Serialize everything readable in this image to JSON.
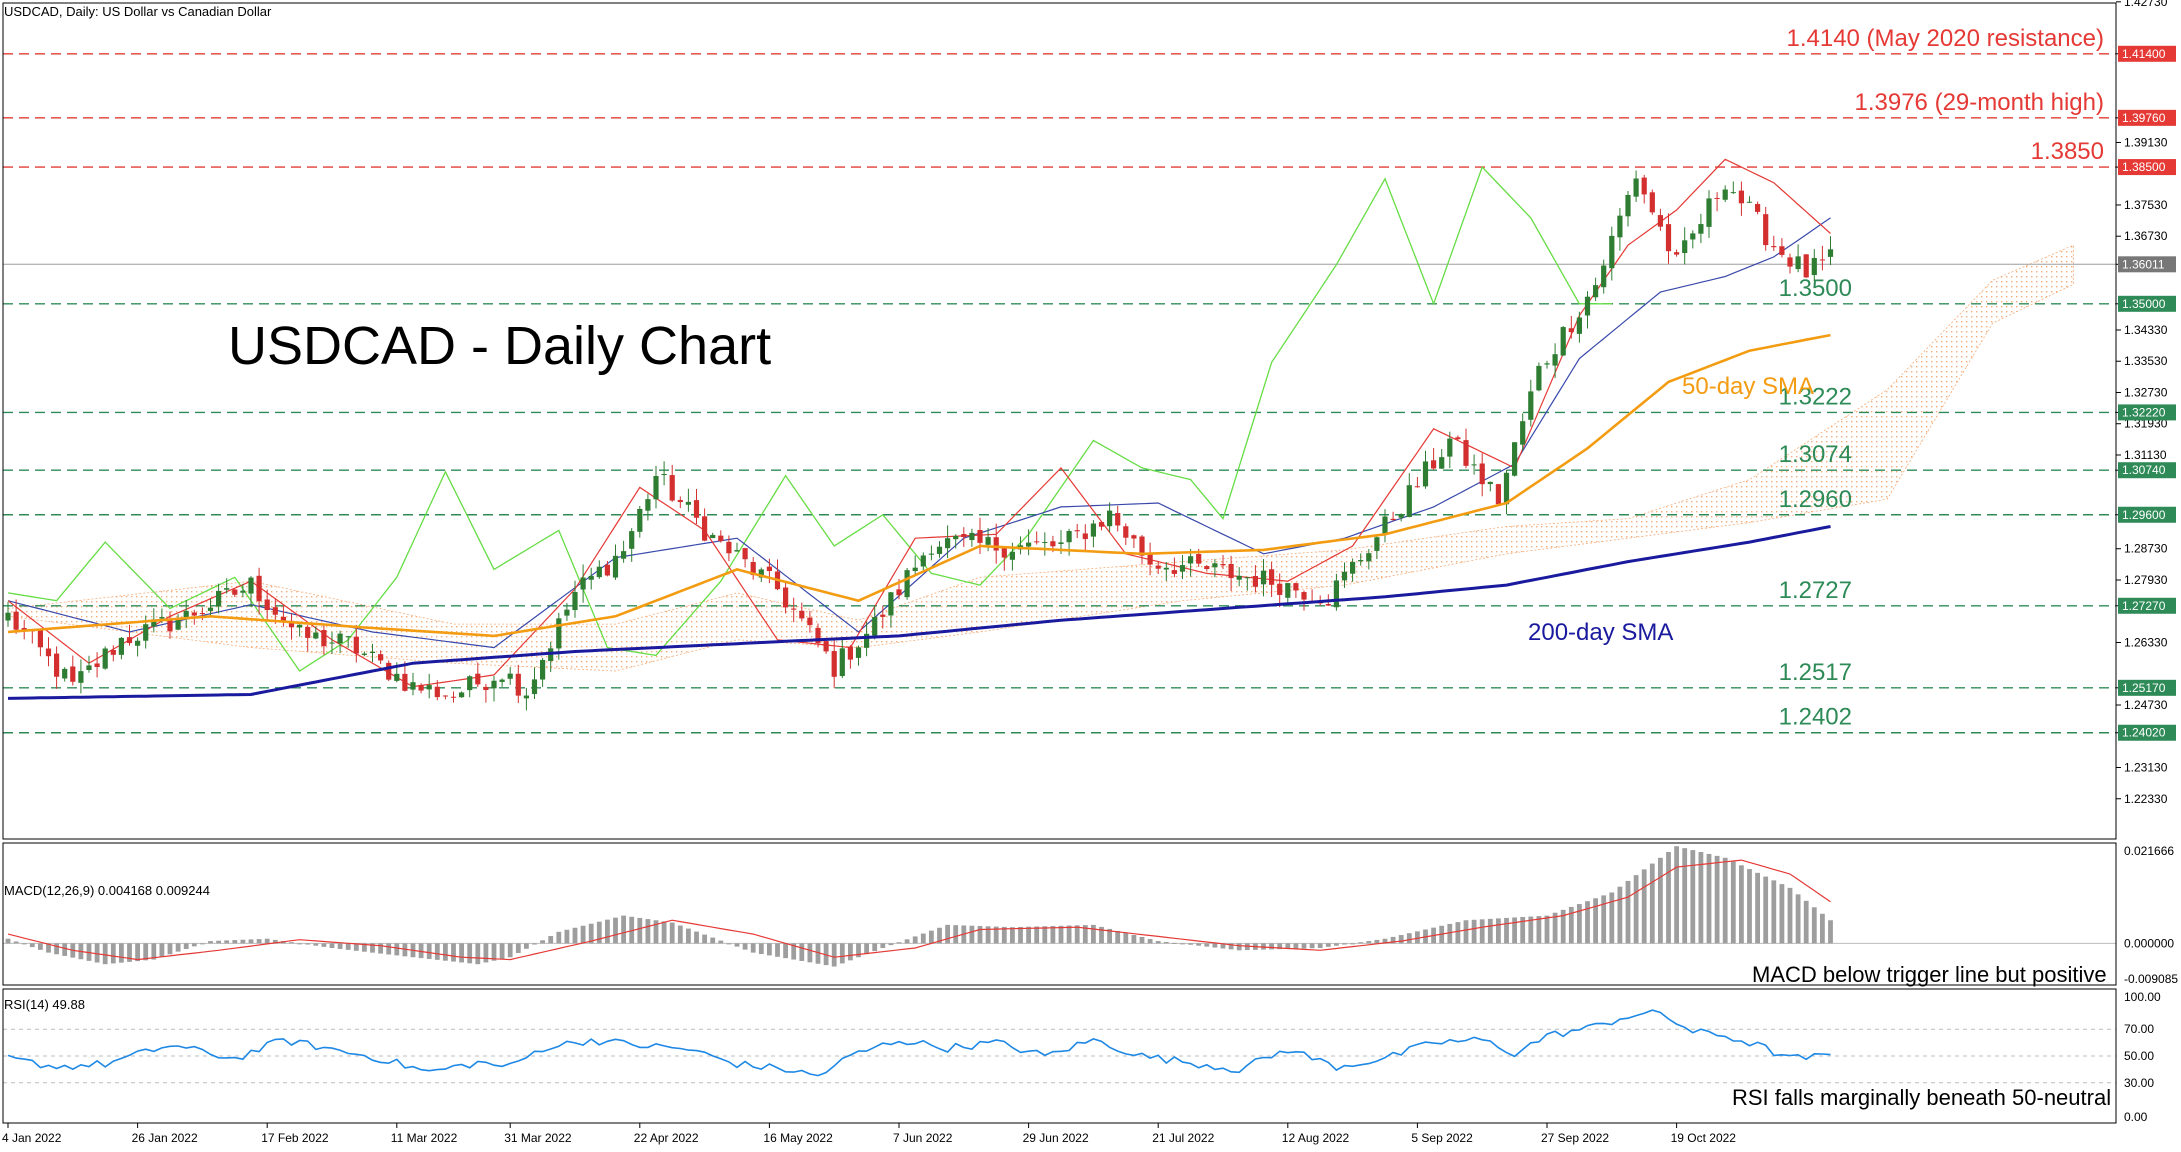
{
  "header": {
    "symbol_info": "USDCAD, Daily:  US Dollar vs Canadian Dollar"
  },
  "annotations": {
    "main_title": "USDCAD - Daily Chart",
    "sma50_label": "50-day SMA",
    "sma200_label": "200-day SMA",
    "macd_note": "MACD below trigger line but positive",
    "rsi_note": "RSI falls marginally beneath 50-neutral"
  },
  "colors": {
    "bull": "#2e7d32",
    "bear": "#d32f2f",
    "sma50": "#f39c12",
    "sma200": "#1a1a9e",
    "tenkan": "#e53935",
    "kijun": "#3949ab",
    "chikou": "#66dd44",
    "cloud": "#f3a46b",
    "resistance": "#e53935",
    "support": "#2e8b57",
    "macd_hist": "#9e9e9e",
    "macd_signal": "#e53935",
    "rsi": "#1e88e5"
  },
  "chart_data": [
    {
      "id": "price",
      "type": "candlestick",
      "ylim": [
        1.213,
        1.427
      ],
      "y_ticks": [
        "1.42730",
        "1.41400",
        "1.39760",
        "1.39130",
        "1.38500",
        "1.37530",
        "1.36730",
        "1.36011",
        "1.35000",
        "1.34330",
        "1.33530",
        "1.32730",
        "1.32220",
        "1.31930",
        "1.31130",
        "1.30740",
        "1.29600",
        "1.28730",
        "1.27930",
        "1.27270",
        "1.26330",
        "1.25170",
        "1.24730",
        "1.24020",
        "1.23130",
        "1.22330"
      ],
      "x_labels": [
        "4 Jan 2022",
        "26 Jan 2022",
        "17 Feb 2022",
        "11 Mar 2022",
        "31 Mar 2022",
        "22 Apr 2022",
        "16 May 2022",
        "7 Jun 2022",
        "29 Jun 2022",
        "21 Jul 2022",
        "12 Aug 2022",
        "5 Sep 2022",
        "27 Sep 2022",
        "19 Oct 2022"
      ],
      "current_price": 1.36011,
      "levels": [
        {
          "value": 1.414,
          "tag": "1.41400",
          "label": "1.4140 (May 2020 resistance)",
          "kind": "resistance"
        },
        {
          "value": 1.3976,
          "tag": "1.39760",
          "label": "1.3976 (29-month high)",
          "kind": "resistance"
        },
        {
          "value": 1.385,
          "tag": "1.38500",
          "label": "1.3850",
          "kind": "resistance"
        },
        {
          "value": 1.35,
          "tag": "1.35000",
          "label": "1.3500",
          "kind": "support"
        },
        {
          "value": 1.3222,
          "tag": "1.32220",
          "label": "1.3222",
          "kind": "support"
        },
        {
          "value": 1.3074,
          "tag": "1.30740",
          "label": "1.3074",
          "kind": "support"
        },
        {
          "value": 1.296,
          "tag": "1.29600",
          "label": "1.2960",
          "kind": "support"
        },
        {
          "value": 1.2727,
          "tag": "1.27270",
          "label": "1.2727",
          "kind": "support"
        },
        {
          "value": 1.2517,
          "tag": "1.25170",
          "label": "1.2517",
          "kind": "support"
        },
        {
          "value": 1.2402,
          "tag": "1.24020",
          "label": "1.2402",
          "kind": "support"
        }
      ],
      "close_anchors": [
        [
          0,
          1.27
        ],
        [
          8,
          1.252
        ],
        [
          14,
          1.264
        ],
        [
          22,
          1.27
        ],
        [
          30,
          1.278
        ],
        [
          36,
          1.265
        ],
        [
          42,
          1.263
        ],
        [
          50,
          1.252
        ],
        [
          55,
          1.25
        ],
        [
          61,
          1.256
        ],
        [
          64,
          1.251
        ],
        [
          70,
          1.276
        ],
        [
          76,
          1.287
        ],
        [
          80,
          1.306
        ],
        [
          87,
          1.29
        ],
        [
          95,
          1.277
        ],
        [
          102,
          1.257
        ],
        [
          107,
          1.268
        ],
        [
          114,
          1.289
        ],
        [
          122,
          1.288
        ],
        [
          130,
          1.288
        ],
        [
          136,
          1.296
        ],
        [
          141,
          1.284
        ],
        [
          148,
          1.282
        ],
        [
          156,
          1.279
        ],
        [
          163,
          1.275
        ],
        [
          170,
          1.293
        ],
        [
          178,
          1.315
        ],
        [
          184,
          1.3
        ],
        [
          189,
          1.333
        ],
        [
          196,
          1.355
        ],
        [
          201,
          1.383
        ],
        [
          206,
          1.36
        ],
        [
          212,
          1.382
        ],
        [
          218,
          1.365
        ],
        [
          222,
          1.358
        ],
        [
          225,
          1.361
        ]
      ],
      "sma50": [
        [
          0,
          1.266
        ],
        [
          25,
          1.27
        ],
        [
          45,
          1.267
        ],
        [
          60,
          1.265
        ],
        [
          75,
          1.27
        ],
        [
          90,
          1.282
        ],
        [
          105,
          1.274
        ],
        [
          120,
          1.288
        ],
        [
          140,
          1.286
        ],
        [
          155,
          1.287
        ],
        [
          170,
          1.291
        ],
        [
          185,
          1.299
        ],
        [
          195,
          1.313
        ],
        [
          205,
          1.33
        ],
        [
          215,
          1.338
        ],
        [
          225,
          1.342
        ]
      ],
      "sma200": [
        [
          0,
          1.249
        ],
        [
          30,
          1.25
        ],
        [
          50,
          1.258
        ],
        [
          70,
          1.261
        ],
        [
          90,
          1.263
        ],
        [
          110,
          1.265
        ],
        [
          130,
          1.269
        ],
        [
          150,
          1.272
        ],
        [
          170,
          1.275
        ],
        [
          185,
          1.278
        ],
        [
          200,
          1.284
        ],
        [
          215,
          1.289
        ],
        [
          225,
          1.293
        ]
      ],
      "tenkan": [
        [
          0,
          1.274
        ],
        [
          10,
          1.258
        ],
        [
          20,
          1.27
        ],
        [
          30,
          1.279
        ],
        [
          40,
          1.264
        ],
        [
          50,
          1.252
        ],
        [
          60,
          1.255
        ],
        [
          70,
          1.277
        ],
        [
          78,
          1.303
        ],
        [
          86,
          1.292
        ],
        [
          95,
          1.264
        ],
        [
          104,
          1.262
        ],
        [
          112,
          1.29
        ],
        [
          122,
          1.291
        ],
        [
          130,
          1.308
        ],
        [
          138,
          1.286
        ],
        [
          148,
          1.281
        ],
        [
          158,
          1.279
        ],
        [
          166,
          1.288
        ],
        [
          176,
          1.318
        ],
        [
          186,
          1.308
        ],
        [
          194,
          1.347
        ],
        [
          200,
          1.365
        ],
        [
          206,
          1.374
        ],
        [
          212,
          1.387
        ],
        [
          218,
          1.381
        ],
        [
          225,
          1.368
        ]
      ],
      "kijun": [
        [
          0,
          1.274
        ],
        [
          15,
          1.266
        ],
        [
          30,
          1.273
        ],
        [
          45,
          1.266
        ],
        [
          60,
          1.262
        ],
        [
          75,
          1.285
        ],
        [
          90,
          1.29
        ],
        [
          105,
          1.266
        ],
        [
          118,
          1.29
        ],
        [
          130,
          1.298
        ],
        [
          142,
          1.299
        ],
        [
          155,
          1.286
        ],
        [
          165,
          1.29
        ],
        [
          176,
          1.298
        ],
        [
          186,
          1.309
        ],
        [
          194,
          1.336
        ],
        [
          204,
          1.353
        ],
        [
          212,
          1.357
        ],
        [
          218,
          1.362
        ],
        [
          225,
          1.372
        ]
      ],
      "chikou": [
        [
          0,
          1.276
        ],
        [
          6,
          1.274
        ],
        [
          12,
          1.289
        ],
        [
          20,
          1.272
        ],
        [
          28,
          1.28
        ],
        [
          36,
          1.256
        ],
        [
          42,
          1.264
        ],
        [
          48,
          1.28
        ],
        [
          54,
          1.307
        ],
        [
          60,
          1.282
        ],
        [
          68,
          1.292
        ],
        [
          74,
          1.262
        ],
        [
          80,
          1.26
        ],
        [
          88,
          1.279
        ],
        [
          96,
          1.306
        ],
        [
          102,
          1.288
        ],
        [
          108,
          1.296
        ],
        [
          114,
          1.281
        ],
        [
          120,
          1.278
        ],
        [
          126,
          1.291
        ],
        [
          134,
          1.315
        ],
        [
          140,
          1.308
        ],
        [
          146,
          1.305
        ],
        [
          150,
          1.295
        ],
        [
          156,
          1.335
        ],
        [
          164,
          1.36
        ],
        [
          170,
          1.382
        ],
        [
          176,
          1.35
        ],
        [
          182,
          1.385
        ],
        [
          188,
          1.372
        ],
        [
          194,
          1.35
        ],
        [
          198,
          1.35
        ]
      ],
      "cloud_a": [
        [
          0,
          1.272
        ],
        [
          30,
          1.279
        ],
        [
          55,
          1.268
        ],
        [
          75,
          1.268
        ],
        [
          90,
          1.276
        ],
        [
          105,
          1.269
        ],
        [
          120,
          1.28
        ],
        [
          145,
          1.284
        ],
        [
          165,
          1.287
        ],
        [
          185,
          1.293
        ],
        [
          200,
          1.295
        ],
        [
          215,
          1.305
        ],
        [
          232,
          1.328
        ],
        [
          245,
          1.356
        ],
        [
          255,
          1.365
        ]
      ],
      "cloud_b": [
        [
          0,
          1.27
        ],
        [
          30,
          1.262
        ],
        [
          55,
          1.258
        ],
        [
          75,
          1.256
        ],
        [
          90,
          1.264
        ],
        [
          105,
          1.262
        ],
        [
          120,
          1.266
        ],
        [
          145,
          1.274
        ],
        [
          165,
          1.278
        ],
        [
          185,
          1.286
        ],
        [
          200,
          1.29
        ],
        [
          215,
          1.294
        ],
        [
          232,
          1.3
        ],
        [
          245,
          1.345
        ],
        [
          255,
          1.355
        ]
      ],
      "candle_count": 226,
      "future_count": 30
    },
    {
      "id": "macd",
      "type": "bar",
      "title": "MACD(12,26,9) 0.004168 0.009244",
      "ylim": [
        -0.009,
        0.0217
      ],
      "y_ticks": [
        "0.021666",
        "0.000000",
        "-0.009085"
      ],
      "hist_anchors": [
        [
          0,
          0.001
        ],
        [
          5,
          -0.002
        ],
        [
          12,
          -0.0045
        ],
        [
          18,
          -0.0035
        ],
        [
          25,
          0.0005
        ],
        [
          32,
          0.001
        ],
        [
          40,
          -0.001
        ],
        [
          50,
          -0.003
        ],
        [
          58,
          -0.0045
        ],
        [
          62,
          -0.003
        ],
        [
          68,
          0.0025
        ],
        [
          76,
          0.006
        ],
        [
          82,
          0.0045
        ],
        [
          92,
          -0.002
        ],
        [
          102,
          -0.005
        ],
        [
          108,
          -0.001
        ],
        [
          116,
          0.004
        ],
        [
          124,
          0.0035
        ],
        [
          134,
          0.004
        ],
        [
          142,
          0.0005
        ],
        [
          152,
          -0.0015
        ],
        [
          162,
          -0.001
        ],
        [
          170,
          0.001
        ],
        [
          180,
          0.005
        ],
        [
          190,
          0.006
        ],
        [
          198,
          0.011
        ],
        [
          206,
          0.021
        ],
        [
          212,
          0.0185
        ],
        [
          220,
          0.012
        ],
        [
          225,
          0.005
        ]
      ],
      "signal_anchors": [
        [
          0,
          0.002
        ],
        [
          8,
          -0.0015
        ],
        [
          16,
          -0.0035
        ],
        [
          26,
          -0.0015
        ],
        [
          36,
          0.0008
        ],
        [
          46,
          -0.0005
        ],
        [
          56,
          -0.003
        ],
        [
          62,
          -0.0035
        ],
        [
          72,
          0.0005
        ],
        [
          82,
          0.005
        ],
        [
          92,
          0.002
        ],
        [
          102,
          -0.003
        ],
        [
          112,
          -0.001
        ],
        [
          120,
          0.003
        ],
        [
          132,
          0.0035
        ],
        [
          142,
          0.0015
        ],
        [
          152,
          -0.0005
        ],
        [
          162,
          -0.0015
        ],
        [
          172,
          0.0005
        ],
        [
          182,
          0.0035
        ],
        [
          192,
          0.006
        ],
        [
          200,
          0.01
        ],
        [
          206,
          0.0165
        ],
        [
          214,
          0.018
        ],
        [
          220,
          0.015
        ],
        [
          225,
          0.009
        ]
      ]
    },
    {
      "id": "rsi",
      "type": "line",
      "title": "RSI(14) 49.88",
      "ylim": [
        0,
        100
      ],
      "y_ticks": [
        "100.00",
        "70.00",
        "50.00",
        "30.00",
        "0.00"
      ],
      "rsi_anchors": [
        [
          0,
          48
        ],
        [
          6,
          42
        ],
        [
          12,
          44
        ],
        [
          20,
          58
        ],
        [
          28,
          48
        ],
        [
          34,
          62
        ],
        [
          40,
          55
        ],
        [
          46,
          48
        ],
        [
          52,
          38
        ],
        [
          58,
          45
        ],
        [
          62,
          42
        ],
        [
          66,
          56
        ],
        [
          72,
          62
        ],
        [
          78,
          58
        ],
        [
          84,
          55
        ],
        [
          90,
          44
        ],
        [
          96,
          40
        ],
        [
          100,
          35
        ],
        [
          104,
          50
        ],
        [
          110,
          62
        ],
        [
          116,
          56
        ],
        [
          122,
          60
        ],
        [
          128,
          50
        ],
        [
          134,
          62
        ],
        [
          140,
          50
        ],
        [
          146,
          45
        ],
        [
          152,
          40
        ],
        [
          158,
          55
        ],
        [
          164,
          42
        ],
        [
          170,
          48
        ],
        [
          176,
          60
        ],
        [
          182,
          62
        ],
        [
          186,
          52
        ],
        [
          190,
          65
        ],
        [
          196,
          72
        ],
        [
          200,
          80
        ],
        [
          204,
          82
        ],
        [
          208,
          68
        ],
        [
          212,
          65
        ],
        [
          216,
          58
        ],
        [
          220,
          48
        ],
        [
          225,
          50
        ]
      ]
    }
  ]
}
